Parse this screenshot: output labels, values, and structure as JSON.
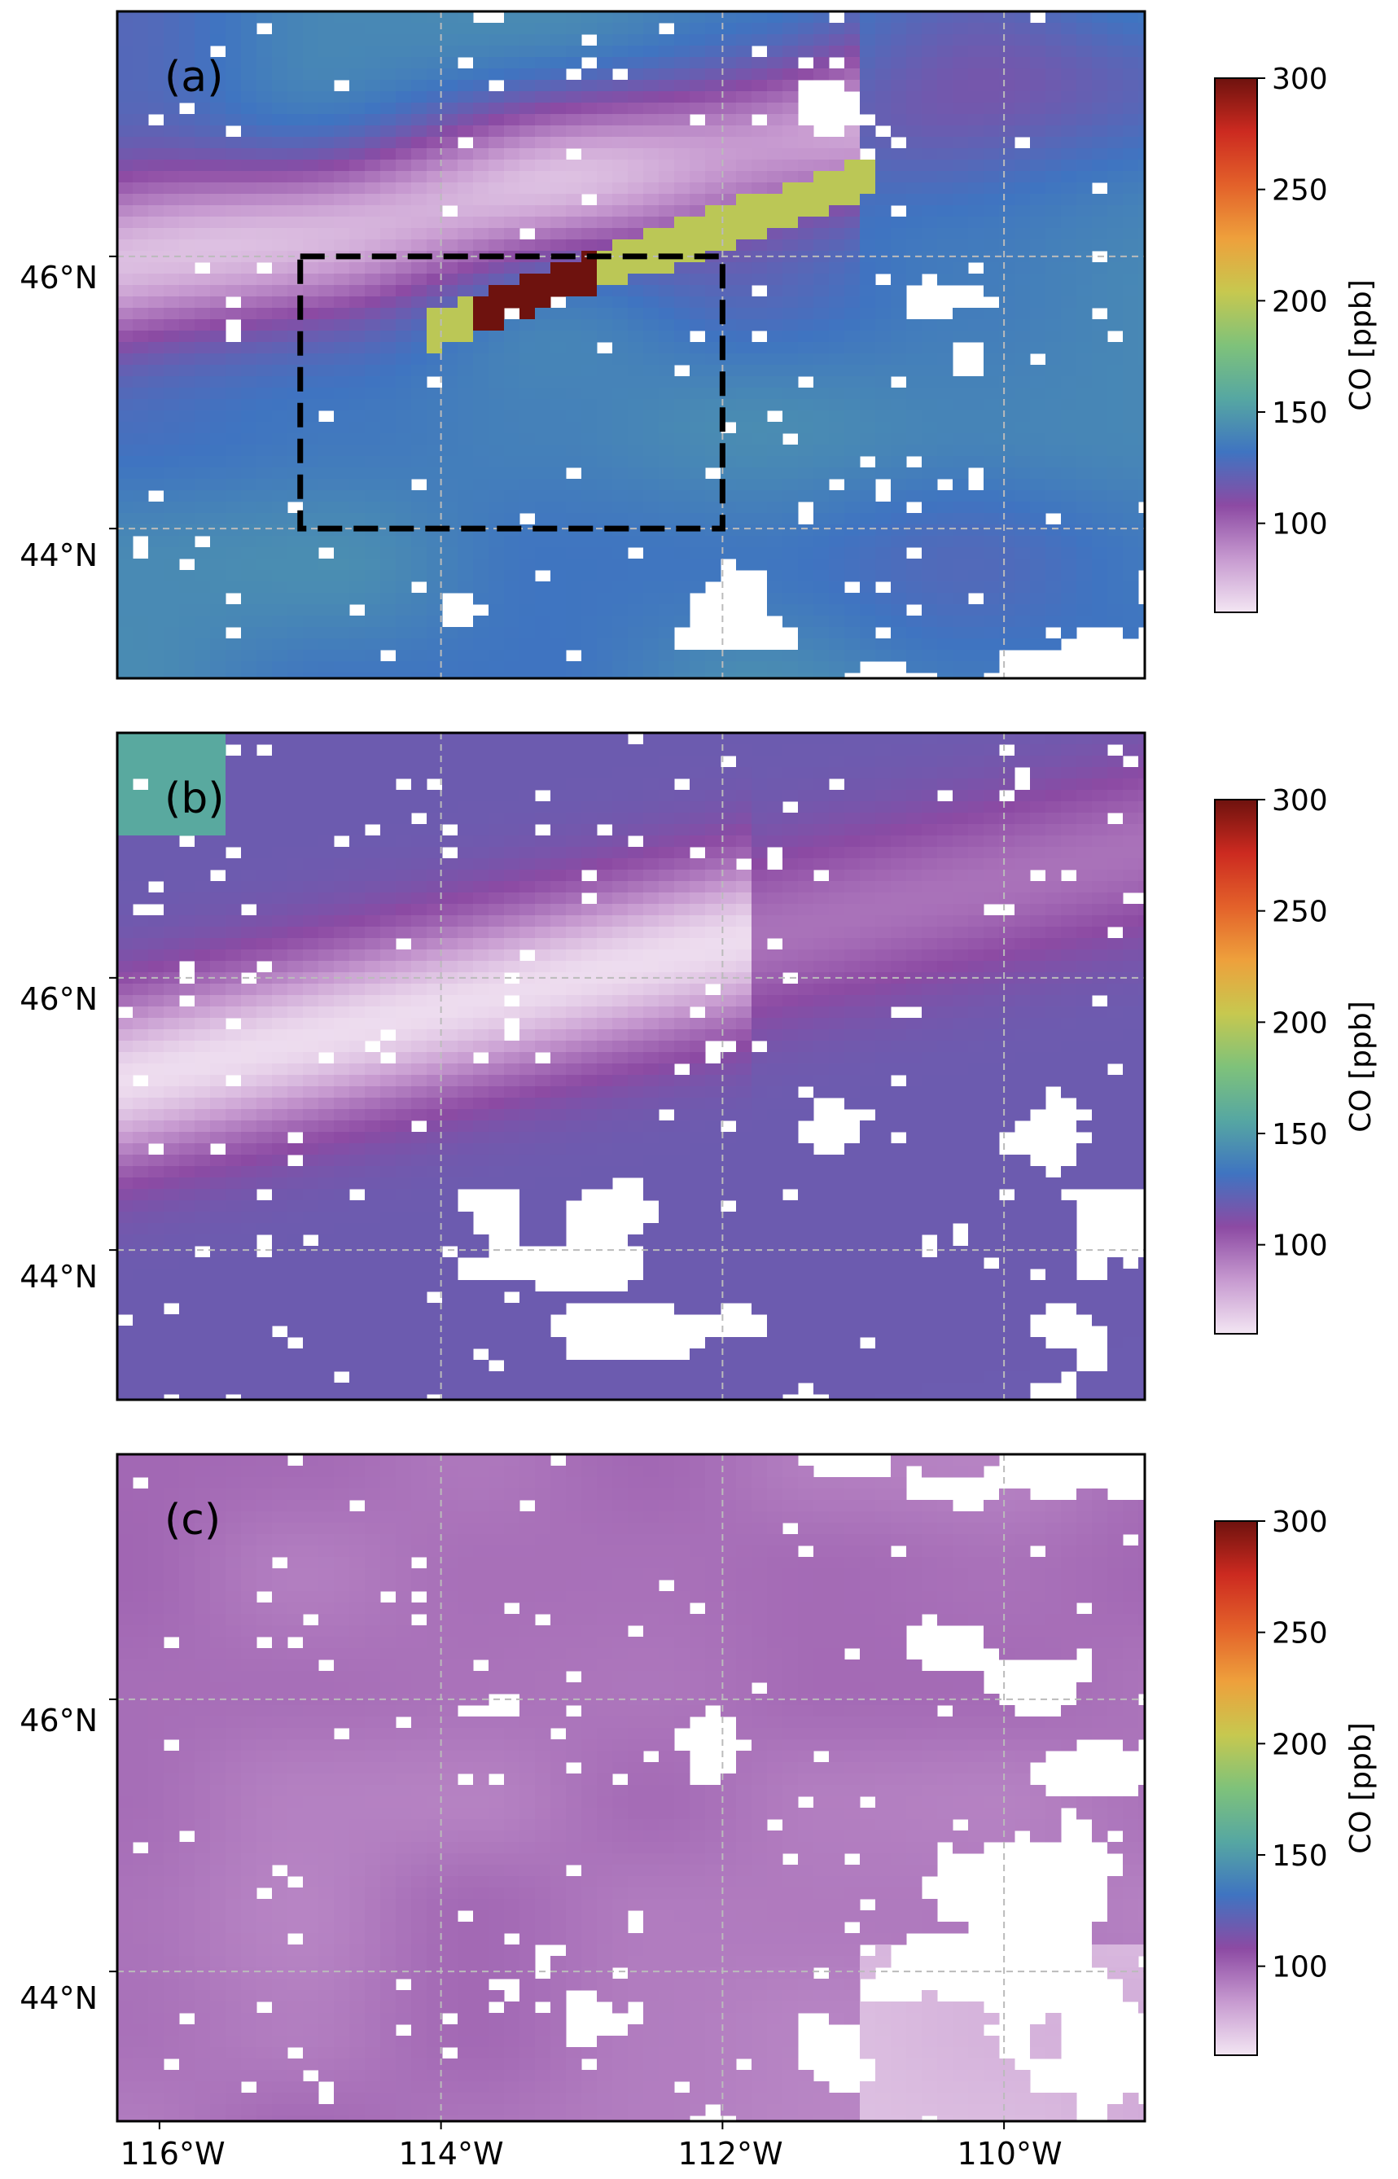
{
  "colors": {
    "colormap": [
      "#f3e6f3",
      "#c79ad0",
      "#8c4aa3",
      "#3f74c1",
      "#56a7a2",
      "#7fc27a",
      "#c7c84f",
      "#eea03c",
      "#e3612a",
      "#cc2a20",
      "#6e120e"
    ],
    "no_data": "#ffffff",
    "roi_box": "#000000",
    "gridline": "#bbbbbb"
  },
  "chart_data": [
    {
      "type": "heatmap",
      "panel_label": "(a)",
      "colorbar": {
        "label": "CO [ppb]",
        "ticks": [
          100,
          150,
          200,
          250,
          300
        ],
        "range": [
          60,
          300
        ]
      },
      "x_range": [
        -116.3,
        -109.0
      ],
      "y_range": [
        42.9,
        47.8
      ],
      "yticks": [
        {
          "value": 44,
          "label": "44°N"
        },
        {
          "value": 46,
          "label": "46°N"
        }
      ],
      "xticks": [],
      "region_box": {
        "lon": [
          -115.0,
          -112.0
        ],
        "lat": [
          44.0,
          46.0
        ],
        "style": "dashed"
      },
      "background_band": {
        "low": 80,
        "high": 150,
        "coverage": 0.82
      },
      "plume": {
        "peak": 300,
        "enhanced": 200
      }
    },
    {
      "type": "heatmap",
      "panel_label": "(b)",
      "colorbar": {
        "label": "CO [ppb]",
        "ticks": [
          100,
          150,
          200,
          250,
          300
        ],
        "range": [
          60,
          300
        ]
      },
      "x_range": [
        -116.3,
        -109.0
      ],
      "y_range": [
        42.9,
        47.8
      ],
      "yticks": [
        {
          "value": 44,
          "label": "44°N"
        },
        {
          "value": 46,
          "label": "46°N"
        }
      ],
      "xticks": [],
      "background_band": {
        "low": 65,
        "high": 120,
        "coverage": 0.78
      }
    },
    {
      "type": "heatmap",
      "panel_label": "(c)",
      "colorbar": {
        "label": "CO [ppb]",
        "ticks": [
          100,
          150,
          200,
          250,
          300
        ],
        "range": [
          60,
          300
        ]
      },
      "x_range": [
        -116.3,
        -109.0
      ],
      "y_range": [
        42.9,
        47.8
      ],
      "yticks": [
        {
          "value": 44,
          "label": "44°N"
        },
        {
          "value": 46,
          "label": "46°N"
        }
      ],
      "xticks": [
        {
          "value": -116,
          "label": "116°W"
        },
        {
          "value": -114,
          "label": "114°W"
        },
        {
          "value": -112,
          "label": "112°W"
        },
        {
          "value": -110,
          "label": "110°W"
        }
      ],
      "background_band": {
        "low": 90,
        "high": 100,
        "coverage": 0.78
      }
    }
  ]
}
